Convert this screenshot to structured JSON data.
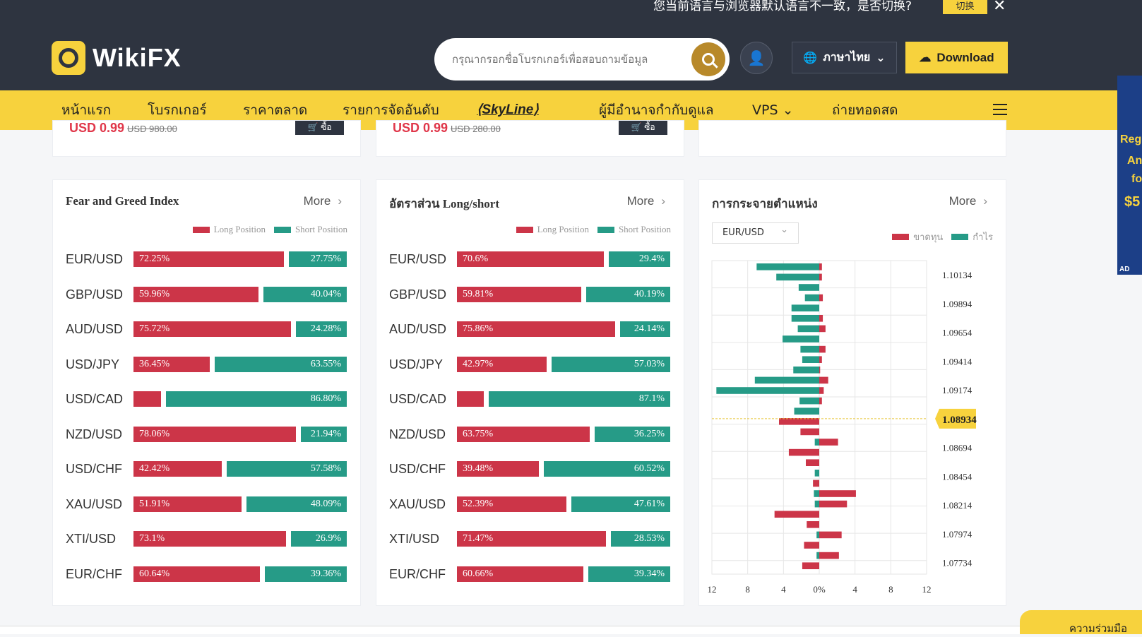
{
  "banner": {
    "notice": "您当前语言与浏览器默认语言不一致，是否切换?",
    "switch_label": "切换",
    "close": "✕"
  },
  "header": {
    "brand": "WikiFX",
    "search_placeholder": "กรุณากรอกชื่อโบรกเกอร์เพื่อสอบถามข้อมูล",
    "language": "ภาษาไทย",
    "download": "Download"
  },
  "nav": {
    "items": [
      "หน้าแรก",
      "โบรกเกอร์",
      "ราคาตลาด",
      "รายการจัดอันดับ",
      "SkyLine",
      "ผู้มีอำนาจกำกับดูแล",
      "VPS",
      "ถ่ายทอดสด"
    ]
  },
  "side_ad": {
    "lines": [
      "Regi",
      "An",
      "fo",
      "$5"
    ],
    "ad_label": "AD"
  },
  "products": [
    {
      "price": "USD 0.99",
      "old": "USD 980.00",
      "cart": "🛒 ซื้อ"
    },
    {
      "price": "USD 0.99",
      "old": "USD 280.00",
      "cart": "🛒 ซื้อ"
    }
  ],
  "colors": {
    "long": "#cc3548",
    "short": "#269b87",
    "accent": "#f7d23d",
    "dark": "#2e3440"
  },
  "panel1": {
    "title": "Fear and Greed Index",
    "more": "More",
    "legend_long": "Long Position",
    "legend_short": "Short Position",
    "rows": [
      {
        "pair": "EUR/USD",
        "long": 72.25,
        "short": 27.75,
        "long_label": "72.25%",
        "short_label": "27.75%"
      },
      {
        "pair": "GBP/USD",
        "long": 59.96,
        "short": 40.04,
        "long_label": "59.96%",
        "short_label": "40.04%"
      },
      {
        "pair": "AUD/USD",
        "long": 75.72,
        "short": 24.28,
        "long_label": "75.72%",
        "short_label": "24.28%"
      },
      {
        "pair": "USD/JPY",
        "long": 36.45,
        "short": 63.55,
        "long_label": "36.45%",
        "short_label": "63.55%"
      },
      {
        "pair": "USD/CAD",
        "long": 13.2,
        "short": 86.8,
        "long_label": "",
        "short_label": "86.80%"
      },
      {
        "pair": "NZD/USD",
        "long": 78.06,
        "short": 21.94,
        "long_label": "78.06%",
        "short_label": "21.94%"
      },
      {
        "pair": "USD/CHF",
        "long": 42.42,
        "short": 57.58,
        "long_label": "42.42%",
        "short_label": "57.58%"
      },
      {
        "pair": "XAU/USD",
        "long": 51.91,
        "short": 48.09,
        "long_label": "51.91%",
        "short_label": "48.09%"
      },
      {
        "pair": "XTI/USD",
        "long": 73.1,
        "short": 26.9,
        "long_label": "73.1%",
        "short_label": "26.9%"
      },
      {
        "pair": "EUR/CHF",
        "long": 60.64,
        "short": 39.36,
        "long_label": "60.64%",
        "short_label": "39.36%"
      }
    ]
  },
  "panel2": {
    "title": "อัตราส่วน Long/short",
    "more": "More",
    "legend_long": "Long Position",
    "legend_short": "Short Position",
    "rows": [
      {
        "pair": "EUR/USD",
        "long": 70.6,
        "short": 29.4,
        "long_label": "70.6%",
        "short_label": "29.4%"
      },
      {
        "pair": "GBP/USD",
        "long": 59.81,
        "short": 40.19,
        "long_label": "59.81%",
        "short_label": "40.19%"
      },
      {
        "pair": "AUD/USD",
        "long": 75.86,
        "short": 24.14,
        "long_label": "75.86%",
        "short_label": "24.14%"
      },
      {
        "pair": "USD/JPY",
        "long": 42.97,
        "short": 57.03,
        "long_label": "42.97%",
        "short_label": "57.03%"
      },
      {
        "pair": "USD/CAD",
        "long": 12.9,
        "short": 87.1,
        "long_label": "",
        "short_label": "87.1%"
      },
      {
        "pair": "NZD/USD",
        "long": 63.75,
        "short": 36.25,
        "long_label": "63.75%",
        "short_label": "36.25%"
      },
      {
        "pair": "USD/CHF",
        "long": 39.48,
        "short": 60.52,
        "long_label": "39.48%",
        "short_label": "60.52%"
      },
      {
        "pair": "XAU/USD",
        "long": 52.39,
        "short": 47.61,
        "long_label": "52.39%",
        "short_label": "47.61%"
      },
      {
        "pair": "XTI/USD",
        "long": 71.47,
        "short": 28.53,
        "long_label": "71.47%",
        "short_label": "28.53%"
      },
      {
        "pair": "EUR/CHF",
        "long": 60.66,
        "short": 39.34,
        "long_label": "60.66%",
        "short_label": "39.34%"
      }
    ]
  },
  "panel3": {
    "title": "การกระจายตำแหน่ง",
    "more": "More",
    "currency": "EUR/USD",
    "legend_loss": "ขาดทุน",
    "legend_profit": "กำไร"
  },
  "chart_data": {
    "type": "bar",
    "orientation": "horizontal",
    "price_levels": [
      "1.10134",
      "1.09894",
      "1.09654",
      "1.09414",
      "1.09174",
      "1.08934",
      "1.08694",
      "1.08454",
      "1.08214",
      "1.07974",
      "1.07734"
    ],
    "current_price": "1.08934",
    "xticks": [
      "12",
      "8",
      "4",
      "0%",
      "4",
      "8",
      "12"
    ],
    "xlim": [
      -12,
      12
    ],
    "rows": [
      {
        "profit": 7,
        "loss": 0.3
      },
      {
        "profit": 4.8,
        "loss": 0.3
      },
      {
        "profit": 2.3,
        "loss": 0
      },
      {
        "profit": 1.6,
        "loss": 0.4
      },
      {
        "profit": 3.1,
        "loss": 0
      },
      {
        "profit": 3.1,
        "loss": 0.4
      },
      {
        "profit": 2.4,
        "loss": 0.7
      },
      {
        "profit": 4.1,
        "loss": 0
      },
      {
        "profit": 2.1,
        "loss": 0.7
      },
      {
        "profit": 1.9,
        "loss": 0.3
      },
      {
        "profit": 2.9,
        "loss": 0.1
      },
      {
        "profit": 7.2,
        "loss": 1
      },
      {
        "profit": 11.5,
        "loss": 0.5
      },
      {
        "profit": 2.2,
        "loss": 0.3
      },
      {
        "profit": 2.8,
        "loss": 0
      },
      {
        "profit": 0,
        "loss": 4.5
      },
      {
        "profit": 0,
        "loss": 2.1
      },
      {
        "profit": 0.5,
        "loss": 2.1
      },
      {
        "profit": 0,
        "loss": 3.4
      },
      {
        "profit": 0,
        "loss": 1.5
      },
      {
        "profit": 0.5,
        "loss": 0
      },
      {
        "profit": 0,
        "loss": 0.7
      },
      {
        "profit": 0.6,
        "loss": 4.1
      },
      {
        "profit": 0.5,
        "loss": 3.1
      },
      {
        "profit": 0,
        "loss": 5
      },
      {
        "profit": 0,
        "loss": 1.4
      },
      {
        "profit": 0.3,
        "loss": 2.5
      },
      {
        "profit": 0,
        "loss": 1.7
      },
      {
        "profit": 0.3,
        "loss": 2.2
      },
      {
        "profit": 0,
        "loss": 1.9
      }
    ]
  },
  "feedback": "ความร่วมมือ"
}
